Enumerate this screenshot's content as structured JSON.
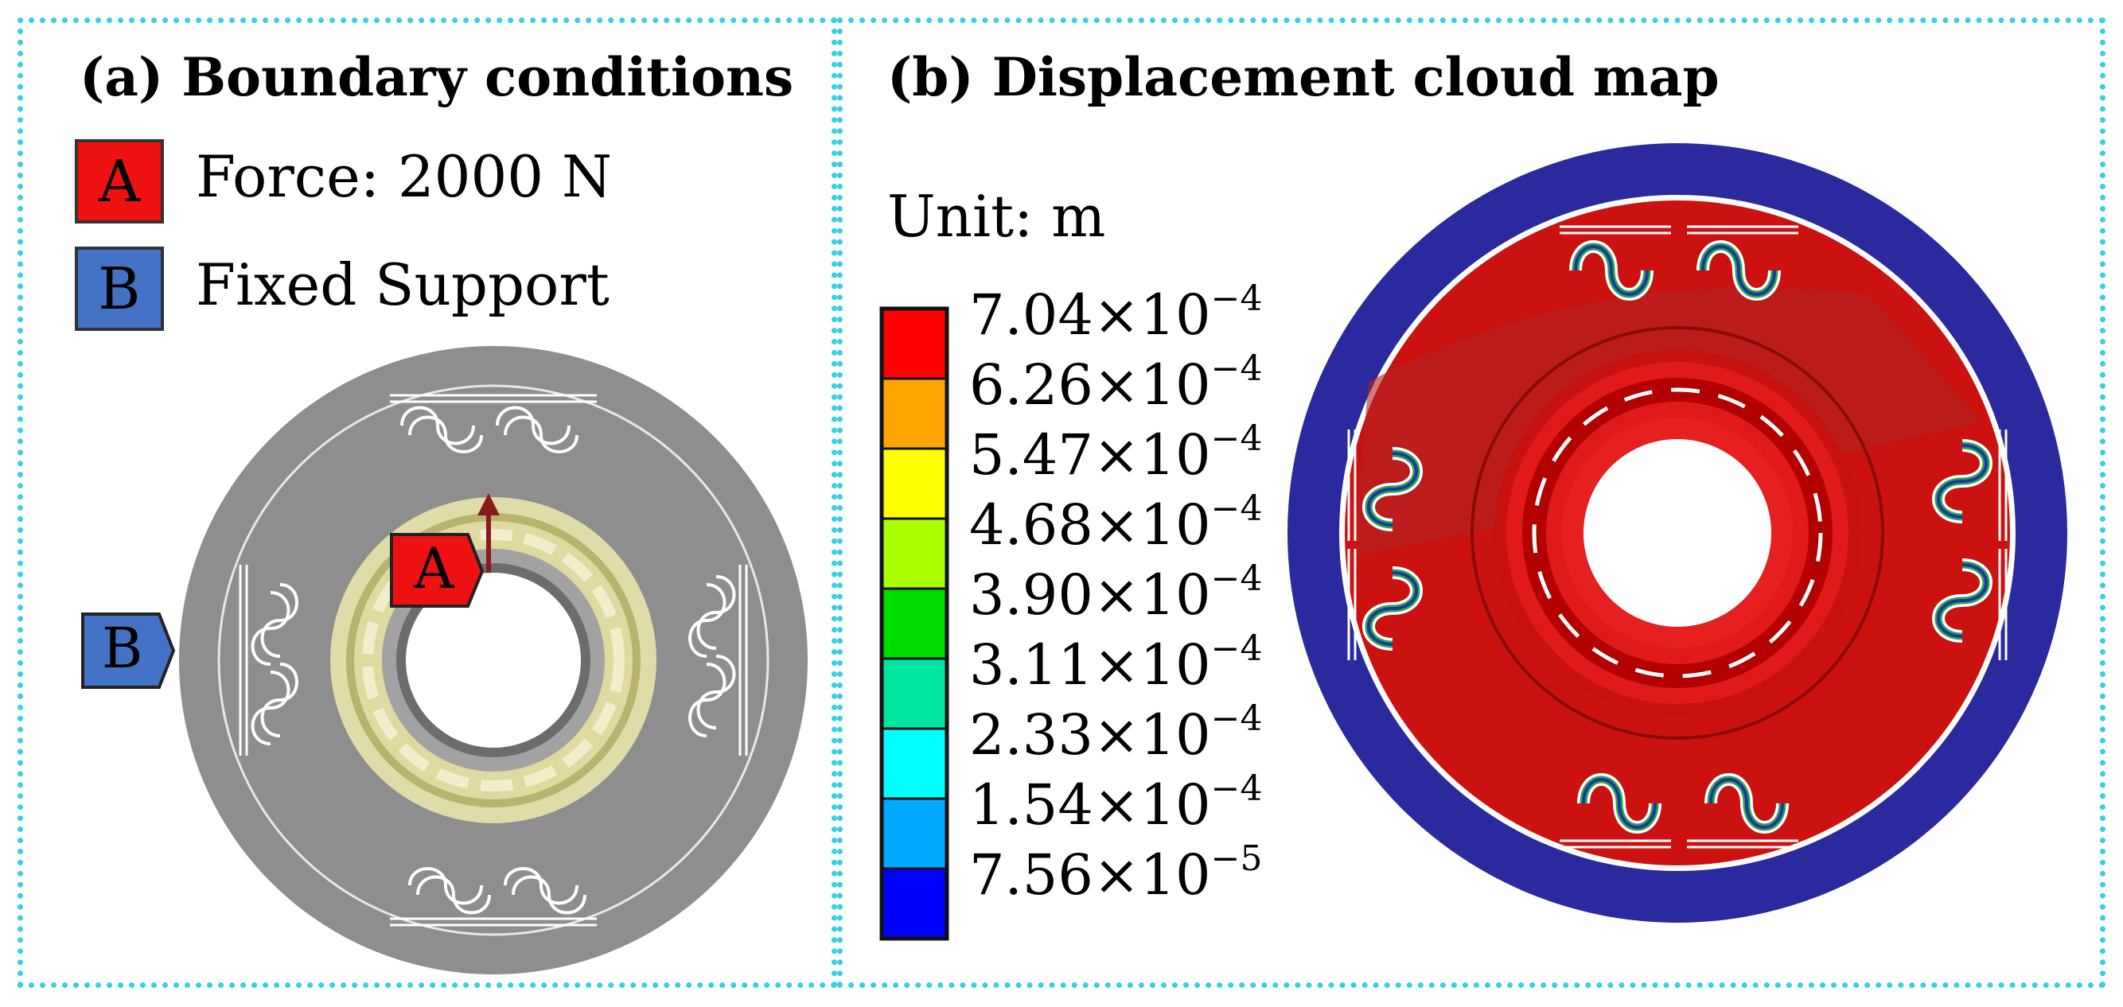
{
  "panel_a": {
    "title": "(a) Boundary conditions",
    "legend": [
      {
        "key": "A",
        "label": "Force: 2000 N",
        "color": "#ee1111"
      },
      {
        "key": "B",
        "label": "Fixed Support",
        "color": "#4472c4"
      }
    ],
    "tag_a": "A",
    "tag_b": "B"
  },
  "panel_b": {
    "title": "(b) Displacement cloud map",
    "unit": "Unit: m",
    "scale": {
      "labels": [
        {
          "mantissa": "7.04",
          "exp": "−4"
        },
        {
          "mantissa": "6.26",
          "exp": "−4"
        },
        {
          "mantissa": "5.47",
          "exp": "−4"
        },
        {
          "mantissa": "4.68",
          "exp": "−4"
        },
        {
          "mantissa": "3.90",
          "exp": "−4"
        },
        {
          "mantissa": "3.11",
          "exp": "−4"
        },
        {
          "mantissa": "2.33",
          "exp": "−4"
        },
        {
          "mantissa": "1.54",
          "exp": "−4"
        },
        {
          "mantissa": "7.56",
          "exp": "−5"
        }
      ],
      "colors": [
        "#ff0000",
        "#ffa500",
        "#ffff00",
        "#aaff00",
        "#00dd00",
        "#00e6a0",
        "#00ffff",
        "#00aaff",
        "#0000ff"
      ]
    }
  }
}
